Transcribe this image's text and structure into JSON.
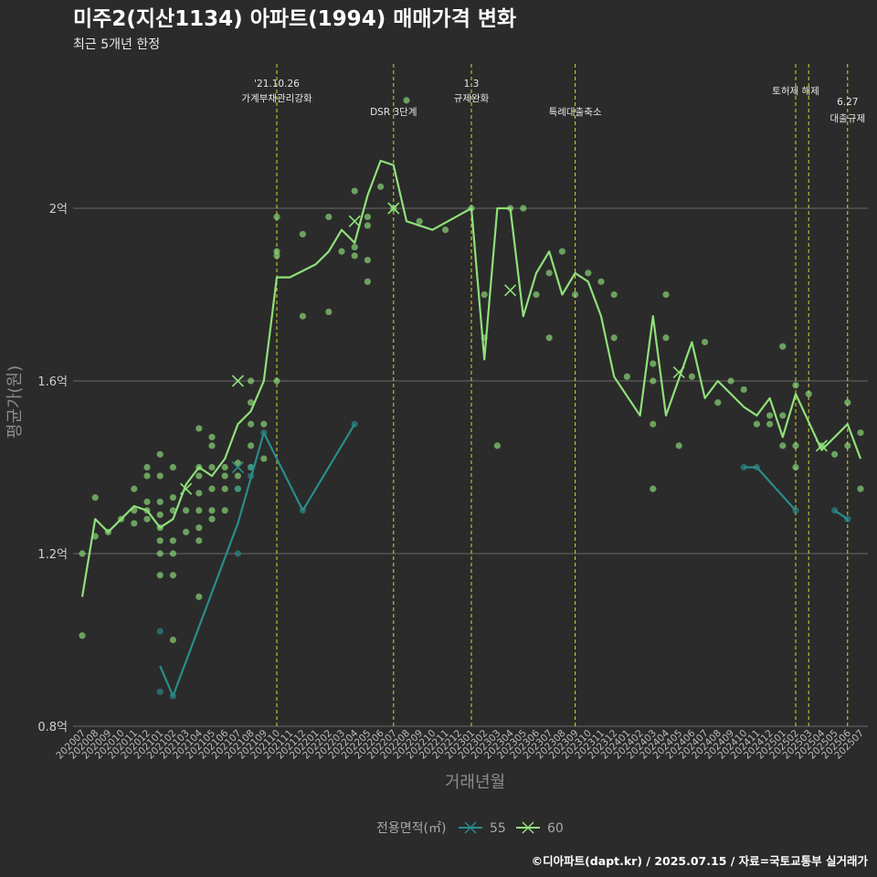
{
  "title": "미주2(지산1134) 아파트(1994) 매매가격 변화",
  "subtitle": "최근 5개년 한정",
  "caption": "©디아파트(dapt.kr) / 2025.07.15 / 자료=국토교통부 실거래가",
  "colors": {
    "background": "#2b2b2b",
    "grid": "#6a6a6a",
    "series55": "#2a8c8c",
    "series60": "#8fe07a",
    "event_line": "#d9d92b"
  },
  "chart_data": {
    "type": "line",
    "title": "미주2(지산1134) 아파트(1994) 매매가격 변화",
    "subtitle": "최근 5개년 한정",
    "xlabel": "거래년월",
    "ylabel": "평균가(원)",
    "ylim": [
      0.8,
      2.4
    ],
    "y_ticks": [
      {
        "value": 0.8,
        "label": "0.8억"
      },
      {
        "value": 1.2,
        "label": "1.2억"
      },
      {
        "value": 1.6,
        "label": "1.6억"
      },
      {
        "value": 2.0,
        "label": "2억"
      }
    ],
    "grid": true,
    "legend_position": "bottom",
    "legend_title": "전용면적(㎡)",
    "categories": [
      "202007",
      "202008",
      "202009",
      "202010",
      "202011",
      "202012",
      "202101",
      "202102",
      "202103",
      "202104",
      "202105",
      "202106",
      "202107",
      "202108",
      "202109",
      "202110",
      "202111",
      "202112",
      "202201",
      "202202",
      "202203",
      "202204",
      "202205",
      "202206",
      "202207",
      "202208",
      "202209",
      "202210",
      "202211",
      "202212",
      "202301",
      "202302",
      "202303",
      "202304",
      "202305",
      "202306",
      "202307",
      "202308",
      "202309",
      "202310",
      "202311",
      "202312",
      "202401",
      "202402",
      "202403",
      "202404",
      "202405",
      "202406",
      "202407",
      "202408",
      "202409",
      "202410",
      "202411",
      "202412",
      "202501",
      "202502",
      "202503",
      "202504",
      "202505",
      "202506",
      "202507"
    ],
    "events": [
      {
        "at": 15.0,
        "label1": "'21.10.26",
        "label2": "가계부채관리강화"
      },
      {
        "at": 24.0,
        "label1": "",
        "label2": "DSR 3단계"
      },
      {
        "at": 30.0,
        "label1": "1.3",
        "label2": "규제완화"
      },
      {
        "at": 38.0,
        "label1": "",
        "label2": "특례대출축소"
      },
      {
        "at": 55.0,
        "label1": "",
        "label2": "토허제 해제"
      },
      {
        "at": 56.0,
        "label1": "",
        "label2": ""
      },
      {
        "at": 59.0,
        "label1": "6.27",
        "label2": "대출규제"
      }
    ],
    "series": [
      {
        "name": "55",
        "line": [
          [
            6,
            0.94
          ],
          [
            7,
            0.87
          ],
          [
            12,
            1.27
          ],
          [
            14,
            1.48
          ],
          [
            17,
            1.3
          ],
          [
            21,
            1.5
          ]
        ],
        "line2": [
          [
            51,
            1.4
          ],
          [
            52,
            1.4
          ],
          [
            55,
            1.3
          ]
        ],
        "line3": [
          [
            58,
            1.3
          ],
          [
            59,
            1.28
          ]
        ],
        "points": [
          [
            6,
            1.02
          ],
          [
            6,
            0.88
          ],
          [
            7,
            0.87
          ],
          [
            12,
            1.35
          ],
          [
            12,
            1.2
          ],
          [
            13,
            1.38
          ],
          [
            13,
            1.4
          ],
          [
            14,
            1.48
          ],
          [
            17,
            1.3
          ],
          [
            21,
            1.5
          ],
          [
            51,
            1.4
          ],
          [
            52,
            1.4
          ],
          [
            55,
            1.3
          ],
          [
            58,
            1.3
          ],
          [
            59,
            1.28
          ]
        ],
        "markers": [
          [
            12,
            1.4
          ]
        ]
      },
      {
        "name": "60",
        "line": [
          [
            0,
            1.1
          ],
          [
            1,
            1.28
          ],
          [
            2,
            1.25
          ],
          [
            3,
            1.28
          ],
          [
            4,
            1.31
          ],
          [
            5,
            1.3
          ],
          [
            6,
            1.26
          ],
          [
            7,
            1.28
          ],
          [
            8,
            1.36
          ],
          [
            9,
            1.4
          ],
          [
            10,
            1.38
          ],
          [
            11,
            1.42
          ],
          [
            12,
            1.5
          ],
          [
            13,
            1.53
          ],
          [
            14,
            1.6
          ],
          [
            15,
            1.84
          ],
          [
            16,
            1.84
          ],
          [
            18,
            1.87
          ],
          [
            19,
            1.9
          ],
          [
            20,
            1.95
          ],
          [
            21,
            1.92
          ],
          [
            22,
            2.03
          ],
          [
            23,
            2.11
          ],
          [
            24,
            2.1
          ],
          [
            25,
            1.97
          ],
          [
            27,
            1.95
          ],
          [
            30,
            2.0
          ],
          [
            31,
            1.65
          ],
          [
            32,
            2.0
          ],
          [
            33,
            2.0
          ],
          [
            34,
            1.75
          ],
          [
            35,
            1.85
          ],
          [
            36,
            1.9
          ],
          [
            37,
            1.8
          ],
          [
            38,
            1.85
          ],
          [
            39,
            1.83
          ],
          [
            40,
            1.75
          ],
          [
            41,
            1.61
          ],
          [
            43,
            1.52
          ],
          [
            44,
            1.75
          ],
          [
            45,
            1.52
          ],
          [
            47,
            1.69
          ],
          [
            48,
            1.56
          ],
          [
            49,
            1.6
          ],
          [
            51,
            1.54
          ],
          [
            52,
            1.52
          ],
          [
            53,
            1.56
          ],
          [
            54,
            1.47
          ],
          [
            55,
            1.57
          ],
          [
            57,
            1.44
          ],
          [
            59,
            1.5
          ],
          [
            60,
            1.42
          ]
        ],
        "points": [
          [
            0,
            1.2
          ],
          [
            0,
            1.01
          ],
          [
            1,
            1.24
          ],
          [
            1,
            1.33
          ],
          [
            2,
            1.25
          ],
          [
            3,
            1.28
          ],
          [
            4,
            1.35
          ],
          [
            4,
            1.3
          ],
          [
            4,
            1.27
          ],
          [
            5,
            1.38
          ],
          [
            5,
            1.32
          ],
          [
            5,
            1.3
          ],
          [
            5,
            1.28
          ],
          [
            5,
            1.4
          ],
          [
            6,
            1.43
          ],
          [
            6,
            1.38
          ],
          [
            6,
            1.32
          ],
          [
            6,
            1.29
          ],
          [
            6,
            1.26
          ],
          [
            6,
            1.23
          ],
          [
            6,
            1.2
          ],
          [
            6,
            1.15
          ],
          [
            7,
            1.4
          ],
          [
            7,
            1.33
          ],
          [
            7,
            1.3
          ],
          [
            7,
            1.23
          ],
          [
            7,
            1.2
          ],
          [
            7,
            1.15
          ],
          [
            7,
            1.0
          ],
          [
            8,
            1.3
          ],
          [
            8,
            1.25
          ],
          [
            9,
            1.49
          ],
          [
            9,
            1.4
          ],
          [
            9,
            1.38
          ],
          [
            9,
            1.34
          ],
          [
            9,
            1.3
          ],
          [
            9,
            1.26
          ],
          [
            9,
            1.23
          ],
          [
            9,
            1.1
          ],
          [
            10,
            1.47
          ],
          [
            10,
            1.45
          ],
          [
            10,
            1.4
          ],
          [
            10,
            1.35
          ],
          [
            10,
            1.3
          ],
          [
            10,
            1.28
          ],
          [
            11,
            1.4
          ],
          [
            11,
            1.38
          ],
          [
            11,
            1.35
          ],
          [
            11,
            1.3
          ],
          [
            12,
            1.41
          ],
          [
            12,
            1.38
          ],
          [
            12,
            1.35
          ],
          [
            13,
            1.6
          ],
          [
            13,
            1.55
          ],
          [
            13,
            1.5
          ],
          [
            13,
            1.45
          ],
          [
            13,
            1.4
          ],
          [
            14,
            1.5
          ],
          [
            14,
            1.42
          ],
          [
            15,
            1.98
          ],
          [
            15,
            1.9
          ],
          [
            15,
            1.89
          ],
          [
            15,
            1.6
          ],
          [
            17,
            1.94
          ],
          [
            17,
            1.75
          ],
          [
            19,
            1.98
          ],
          [
            19,
            1.76
          ],
          [
            20,
            1.9
          ],
          [
            21,
            2.04
          ],
          [
            21,
            1.91
          ],
          [
            21,
            1.89
          ],
          [
            22,
            1.98
          ],
          [
            22,
            1.96
          ],
          [
            22,
            1.88
          ],
          [
            22,
            1.83
          ],
          [
            23,
            2.05
          ],
          [
            24,
            2.0
          ],
          [
            25,
            2.25
          ],
          [
            26,
            1.97
          ],
          [
            28,
            1.95
          ],
          [
            30,
            2.0
          ],
          [
            31,
            1.8
          ],
          [
            31,
            1.7
          ],
          [
            32,
            1.45
          ],
          [
            33,
            2.0
          ],
          [
            34,
            2.0
          ],
          [
            35,
            1.8
          ],
          [
            36,
            1.7
          ],
          [
            36,
            1.85
          ],
          [
            37,
            1.9
          ],
          [
            38,
            1.8
          ],
          [
            39,
            1.85
          ],
          [
            40,
            1.83
          ],
          [
            41,
            1.8
          ],
          [
            41,
            1.7
          ],
          [
            42,
            1.61
          ],
          [
            44,
            1.64
          ],
          [
            44,
            1.6
          ],
          [
            44,
            1.5
          ],
          [
            44,
            1.35
          ],
          [
            45,
            1.8
          ],
          [
            45,
            1.7
          ],
          [
            46,
            1.45
          ],
          [
            47,
            1.61
          ],
          [
            48,
            1.69
          ],
          [
            49,
            1.55
          ],
          [
            50,
            1.6
          ],
          [
            51,
            1.58
          ],
          [
            52,
            1.5
          ],
          [
            53,
            1.52
          ],
          [
            53,
            1.5
          ],
          [
            54,
            1.68
          ],
          [
            54,
            1.52
          ],
          [
            54,
            1.45
          ],
          [
            55,
            1.59
          ],
          [
            55,
            1.45
          ],
          [
            55,
            1.4
          ],
          [
            56,
            1.57
          ],
          [
            57,
            1.45
          ],
          [
            58,
            1.43
          ],
          [
            59,
            1.55
          ],
          [
            59,
            1.45
          ],
          [
            60,
            1.48
          ],
          [
            60,
            1.35
          ]
        ],
        "markers": [
          [
            12,
            1.6
          ],
          [
            21,
            1.97
          ],
          [
            24,
            2.0
          ],
          [
            33,
            1.81
          ],
          [
            46,
            1.62
          ],
          [
            57,
            1.45
          ],
          [
            8,
            1.35
          ]
        ]
      }
    ]
  }
}
